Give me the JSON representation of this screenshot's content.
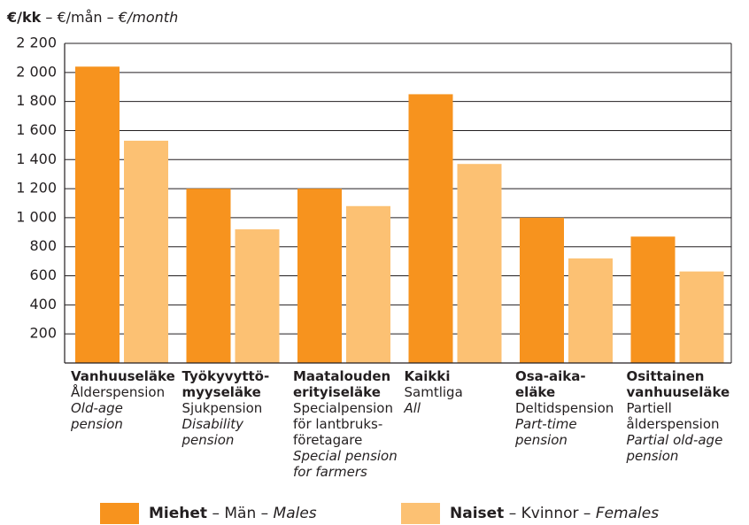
{
  "chart_data": {
    "type": "bar",
    "title": [
      "€/kk",
      " – €/mån – ",
      "€/month"
    ],
    "categories": [
      [
        "Vanhuuseläke",
        "Ålderspension",
        "Old-age pension"
      ],
      [
        "Työkyvyttö­myyseläke",
        "Sjukpension",
        "Disability pension"
      ],
      [
        "Maatalouden erityiseläke",
        "Specialpension för lantbruks­företagare",
        "Special pension for farmers"
      ],
      [
        "Kaikki",
        "Samtliga",
        "All"
      ],
      [
        "Osa-aika-eläke",
        "Deltids­pension",
        "Part-time pension"
      ],
      [
        "Osittainen vanhuuseläke",
        "Partiell ålderspension",
        "Partial old-age pension"
      ]
    ],
    "series": [
      {
        "name": [
          "Miehet",
          " – Män – ",
          "Males"
        ],
        "color": "#f7931e",
        "values": [
          2040,
          1200,
          1200,
          1850,
          1000,
          870
        ]
      },
      {
        "name": [
          "Naiset",
          " – Kvinnor – ",
          "Females"
        ],
        "color": "#fcc173",
        "values": [
          1530,
          920,
          1080,
          1370,
          720,
          630
        ]
      }
    ],
    "ylim": [
      0,
      2200
    ],
    "yticks": [
      200,
      400,
      600,
      800,
      {
        "value": 1000,
        "label": "1 000"
      },
      {
        "value": 1200,
        "label": "1 200"
      },
      {
        "value": 1400,
        "label": "1 400"
      },
      {
        "value": 1600,
        "label": "1 600"
      },
      {
        "value": 1800,
        "label": "1 800"
      },
      {
        "value": 2000,
        "label": "2 000"
      },
      {
        "value": 2200,
        "label": "2 200"
      }
    ],
    "grid": true
  }
}
